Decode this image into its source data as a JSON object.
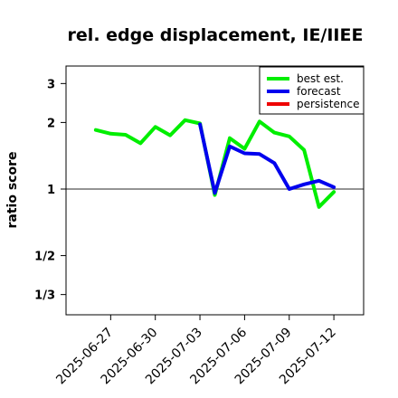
{
  "chart_data": {
    "type": "line",
    "title": "rel. edge displacement, IE/IIEE",
    "ylabel": "ratio score",
    "xlabel": "",
    "y_scale": "log",
    "ylim": [
      0.27,
      3.6
    ],
    "xlim": [
      "2025-06-24",
      "2025-07-14"
    ],
    "reference_line": 1,
    "yticks": [
      {
        "value": 0.3333,
        "label": "1/3"
      },
      {
        "value": 0.5,
        "label": "1/2"
      },
      {
        "value": 1,
        "label": "1"
      },
      {
        "value": 2,
        "label": "2"
      },
      {
        "value": 3,
        "label": "3"
      }
    ],
    "xticks": [
      {
        "date": "2025-06-27",
        "label": "2025-06-27",
        "color": "#000000"
      },
      {
        "date": "2025-06-30",
        "label": "2025-06-30",
        "color": "#000000"
      },
      {
        "date": "2025-07-03",
        "label": "2025-07-03",
        "color": "#1e8c1e"
      },
      {
        "date": "2025-07-06",
        "label": "2025-07-06",
        "color": "#000000"
      },
      {
        "date": "2025-07-09",
        "label": "2025-07-09",
        "color": "#000000"
      },
      {
        "date": "2025-07-12",
        "label": "2025-07-12",
        "color": "#000000"
      }
    ],
    "series": [
      {
        "name": "best est.",
        "color": "#00ee00",
        "points": [
          {
            "x": "2025-06-26",
            "y": 1.85
          },
          {
            "x": "2025-06-27",
            "y": 1.78
          },
          {
            "x": "2025-06-28",
            "y": 1.76
          },
          {
            "x": "2025-06-29",
            "y": 1.61
          },
          {
            "x": "2025-06-30",
            "y": 1.91
          },
          {
            "x": "2025-07-01",
            "y": 1.75
          },
          {
            "x": "2025-07-02",
            "y": 2.05
          },
          {
            "x": "2025-07-03",
            "y": 1.98
          },
          {
            "x": "2025-07-04",
            "y": 0.94
          },
          {
            "x": "2025-07-05",
            "y": 1.7
          },
          {
            "x": "2025-07-06",
            "y": 1.52
          },
          {
            "x": "2025-07-07",
            "y": 2.02
          },
          {
            "x": "2025-07-08",
            "y": 1.8
          },
          {
            "x": "2025-07-09",
            "y": 1.73
          },
          {
            "x": "2025-07-10",
            "y": 1.5
          },
          {
            "x": "2025-07-11",
            "y": 0.83
          },
          {
            "x": "2025-07-12",
            "y": 0.97
          }
        ]
      },
      {
        "name": "forecast",
        "color": "#0000ee",
        "points": [
          {
            "x": "2025-07-03",
            "y": 1.96
          },
          {
            "x": "2025-07-04",
            "y": 0.96
          },
          {
            "x": "2025-07-05",
            "y": 1.56
          },
          {
            "x": "2025-07-06",
            "y": 1.45
          },
          {
            "x": "2025-07-07",
            "y": 1.44
          },
          {
            "x": "2025-07-08",
            "y": 1.31
          },
          {
            "x": "2025-07-09",
            "y": 1.0
          },
          {
            "x": "2025-07-10",
            "y": 1.05
          },
          {
            "x": "2025-07-11",
            "y": 1.09
          },
          {
            "x": "2025-07-12",
            "y": 1.02
          }
        ]
      },
      {
        "name": "persistence",
        "color": "#ee0000",
        "points": []
      }
    ],
    "legend": {
      "position": "top-right"
    }
  }
}
